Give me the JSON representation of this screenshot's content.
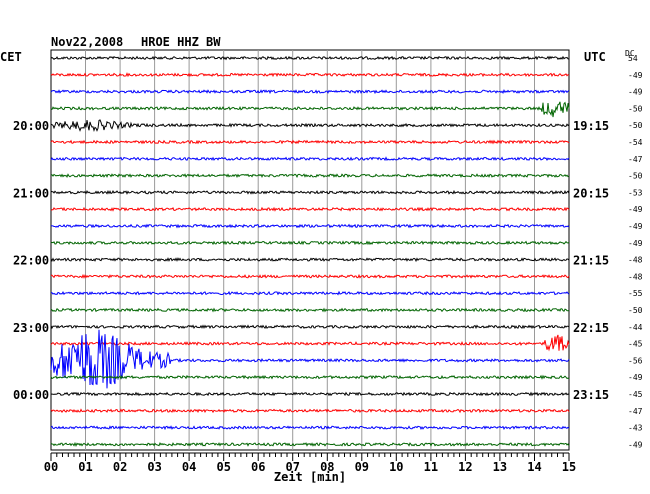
{
  "header": {
    "date": "Nov22,2008",
    "station": "HROE HHZ BW",
    "left_tz": "CET",
    "right_tz": "UTC",
    "dc_label": "DC"
  },
  "chart_data": {
    "type": "line",
    "title": "Nov22,2008    HROE HHZ BW",
    "xlabel": "Zeit [min]",
    "xlim": [
      0,
      15
    ],
    "x_ticks": [
      "00",
      "01",
      "02",
      "03",
      "04",
      "05",
      "06",
      "07",
      "08",
      "09",
      "10",
      "11",
      "12",
      "13",
      "14",
      "15"
    ],
    "trace_colors": [
      "#000000",
      "#ff0000",
      "#0000ff",
      "#006400"
    ],
    "traces_count": 24,
    "left_time_labels": [
      {
        "trace": 4,
        "label": "20:00"
      },
      {
        "trace": 8,
        "label": "21:00"
      },
      {
        "trace": 12,
        "label": "22:00"
      },
      {
        "trace": 16,
        "label": "23:00"
      },
      {
        "trace": 20,
        "label": "00:00"
      }
    ],
    "right_time_labels": [
      {
        "trace": 4,
        "label": "19:15"
      },
      {
        "trace": 8,
        "label": "20:15"
      },
      {
        "trace": 12,
        "label": "21:15"
      },
      {
        "trace": 16,
        "label": "22:15"
      },
      {
        "trace": 20,
        "label": "23:15"
      }
    ],
    "dc_offsets": [
      "54",
      "-49",
      "-49",
      "-50",
      "-50",
      "-54",
      "-47",
      "-50",
      "-53",
      "-49",
      "-49",
      "-49",
      "-48",
      "-48",
      "-55",
      "-50",
      "-44",
      "-45",
      "-56",
      "-49",
      "-45",
      "-47",
      "-43",
      "-49"
    ],
    "events": [
      {
        "trace": 3,
        "start_min": 14.2,
        "end_min": 15.0,
        "amplitude": 9
      },
      {
        "trace": 4,
        "start_min": 0.0,
        "end_min": 3.2,
        "amplitude": 5
      },
      {
        "trace": 17,
        "start_min": 14.3,
        "end_min": 15.0,
        "amplitude": 9
      },
      {
        "trace": 18,
        "start_min": 0.0,
        "end_min": 3.5,
        "amplitude": 28
      }
    ]
  }
}
